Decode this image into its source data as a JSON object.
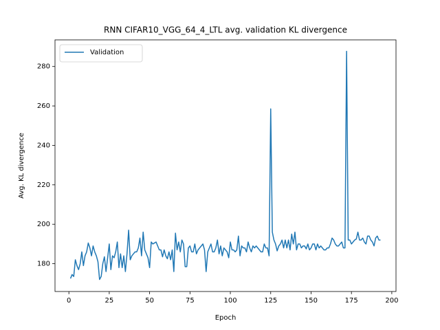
{
  "chart_data": {
    "type": "line",
    "title": "RNN CIFAR10_VGG_64_4_LTL avg. validation KL divergence",
    "x_label": "Epoch",
    "y_label": "Avg. KL divergence",
    "x": [
      1,
      2,
      3,
      4,
      5,
      6,
      7,
      8,
      9,
      10,
      11,
      12,
      13,
      14,
      15,
      16,
      17,
      18,
      19,
      20,
      21,
      22,
      23,
      24,
      25,
      26,
      27,
      28,
      29,
      30,
      31,
      32,
      33,
      34,
      35,
      36,
      37,
      38,
      39,
      40,
      41,
      42,
      43,
      44,
      45,
      46,
      47,
      48,
      49,
      50,
      51,
      52,
      53,
      54,
      55,
      56,
      57,
      58,
      59,
      60,
      61,
      62,
      63,
      64,
      65,
      66,
      67,
      68,
      69,
      70,
      71,
      72,
      73,
      74,
      75,
      76,
      77,
      78,
      79,
      80,
      81,
      82,
      83,
      84,
      85,
      86,
      87,
      88,
      89,
      90,
      91,
      92,
      93,
      94,
      95,
      96,
      97,
      98,
      99,
      100,
      101,
      102,
      103,
      104,
      105,
      106,
      107,
      108,
      109,
      110,
      111,
      112,
      113,
      114,
      115,
      116,
      117,
      118,
      119,
      120,
      121,
      122,
      123,
      124,
      125,
      126,
      127,
      128,
      129,
      130,
      131,
      132,
      133,
      134,
      135,
      136,
      137,
      138,
      139,
      140,
      141,
      142,
      143,
      144,
      145,
      146,
      147,
      148,
      149,
      150,
      151,
      152,
      153,
      154,
      155,
      156,
      157,
      158,
      159,
      160,
      161,
      162,
      163,
      164,
      165,
      166,
      167,
      168,
      169,
      170,
      171,
      172,
      173,
      174,
      175,
      176,
      177,
      178,
      179,
      180,
      181,
      182,
      183,
      184,
      185,
      186,
      187,
      188,
      189,
      190,
      191,
      192,
      193
    ],
    "series": [
      {
        "name": "Validation",
        "color": "#1f77b4",
        "values": [
          172.5,
          174.5,
          173.5,
          182,
          179,
          177,
          180,
          186,
          179,
          184,
          186,
          190.5,
          188,
          184,
          189,
          186,
          184,
          181,
          172,
          173.5,
          180,
          183.5,
          176,
          183,
          190,
          177,
          184,
          183,
          186,
          191,
          178,
          185,
          178,
          184,
          176,
          185,
          197,
          182,
          184,
          185,
          186,
          186,
          188,
          193,
          184,
          196,
          187,
          185,
          183,
          178,
          191,
          190,
          190.5,
          191,
          189,
          187,
          187,
          183.5,
          187,
          184,
          182.5,
          186,
          182,
          187,
          176,
          195.5,
          187,
          191,
          186,
          192,
          190,
          178.5,
          178.5,
          188,
          189,
          186,
          186,
          190,
          185,
          187,
          188,
          189,
          190,
          187,
          176,
          186,
          188,
          190,
          186,
          186,
          188,
          192,
          185,
          189,
          184,
          188,
          187,
          186,
          183,
          191,
          187,
          187,
          186,
          187,
          194,
          184,
          189,
          188,
          188,
          186,
          191,
          188,
          186,
          189,
          188,
          189,
          188,
          187,
          186,
          186,
          190,
          188,
          188,
          184,
          258.5,
          196,
          192,
          190,
          186.5,
          189,
          190,
          192,
          188,
          192,
          188,
          192,
          187,
          195,
          190,
          196,
          187,
          190,
          190,
          188,
          189,
          189,
          187.5,
          190,
          187,
          188,
          190,
          190,
          187,
          190,
          188,
          189,
          188,
          187,
          187,
          188,
          188,
          190,
          193,
          192,
          190,
          189,
          189,
          190,
          191,
          188,
          188,
          287.7,
          192,
          192,
          190,
          191,
          192,
          192.5,
          196,
          192,
          192,
          193,
          191,
          190,
          194,
          194,
          192,
          191,
          189,
          193,
          194,
          192,
          192
        ]
      }
    ],
    "xlim": [
      -8.6,
      202.6
    ],
    "ylim": [
      165.9,
      293.5
    ],
    "xticks": [
      0,
      25,
      50,
      75,
      100,
      125,
      150,
      175,
      200
    ],
    "yticks": [
      180,
      200,
      220,
      240,
      260,
      280
    ],
    "legend": "upper left",
    "grid": false
  }
}
